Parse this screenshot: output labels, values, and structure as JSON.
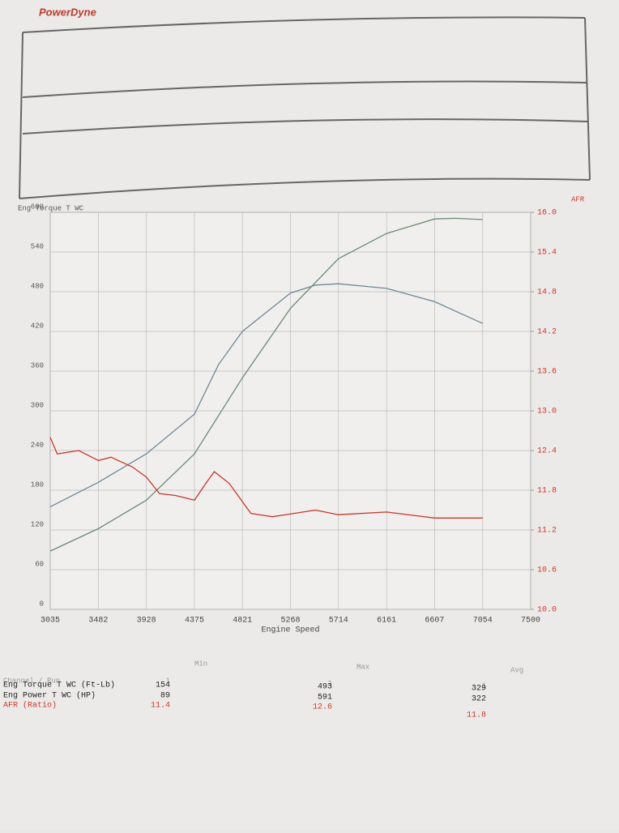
{
  "header": {
    "logo": "PowerDyne"
  },
  "chart_data": {
    "type": "line",
    "ylabel": "Eng Torque T WC",
    "y2label": "AFR",
    "xlabel": "Engine Speed",
    "xlim": [
      3035,
      7500
    ],
    "xticks": [
      3035,
      3482,
      3928,
      4375,
      4821,
      5268,
      5714,
      6161,
      6607,
      7054,
      7500
    ],
    "ylim": [
      0,
      600
    ],
    "yticks": [
      0,
      60,
      120,
      180,
      240,
      300,
      360,
      420,
      480,
      540,
      600
    ],
    "y2lim": [
      10,
      16
    ],
    "y2ticks": [
      {
        "value": 10,
        "label": "10.0"
      },
      10.6,
      11.2,
      11.8,
      12.4,
      {
        "value": 13,
        "label": "13.0"
      },
      13.6,
      14.2,
      14.8,
      15.4,
      {
        "value": 16,
        "label": "16.0"
      }
    ],
    "grid": true,
    "series": [
      {
        "name": "Eng Torque T WC (Ft-Lb)",
        "color": "#6f8996",
        "x": [
          3035,
          3482,
          3928,
          4375,
          4600,
          4821,
          5268,
          5500,
          5714,
          6161,
          6607,
          7054
        ],
        "values": [
          155,
          192,
          235,
          295,
          370,
          420,
          478,
          490,
          492,
          485,
          465,
          432
        ]
      },
      {
        "name": "Eng Power T WC (HP)",
        "color": "#6b8a74",
        "x": [
          3035,
          3482,
          3928,
          4375,
          4821,
          5268,
          5714,
          6161,
          6607,
          6800,
          7054
        ],
        "values": [
          88,
          122,
          165,
          235,
          350,
          455,
          530,
          568,
          590,
          591,
          589
        ]
      },
      {
        "name": "AFR (Ratio)",
        "color": "#c8372d",
        "axis": "y2",
        "x": [
          3035,
          3100,
          3300,
          3482,
          3600,
          3800,
          3928,
          4050,
          4200,
          4375,
          4480,
          4560,
          4700,
          4900,
          5100,
          5500,
          5714,
          6161,
          6607,
          7054
        ],
        "values": [
          12.6,
          12.35,
          12.4,
          12.25,
          12.3,
          12.15,
          12.0,
          11.75,
          11.72,
          11.65,
          11.9,
          12.08,
          11.9,
          11.45,
          11.4,
          11.5,
          11.43,
          11.47,
          11.38,
          11.38
        ]
      }
    ]
  },
  "summary": {
    "columns": [
      "Channel / Run",
      "Min",
      "Max",
      "Avg"
    ],
    "runs": [
      "1",
      "1",
      "1"
    ],
    "rows": [
      [
        154,
        493,
        329
      ],
      [
        89,
        591,
        322
      ],
      [
        11.4,
        12.6,
        11.8
      ]
    ]
  }
}
